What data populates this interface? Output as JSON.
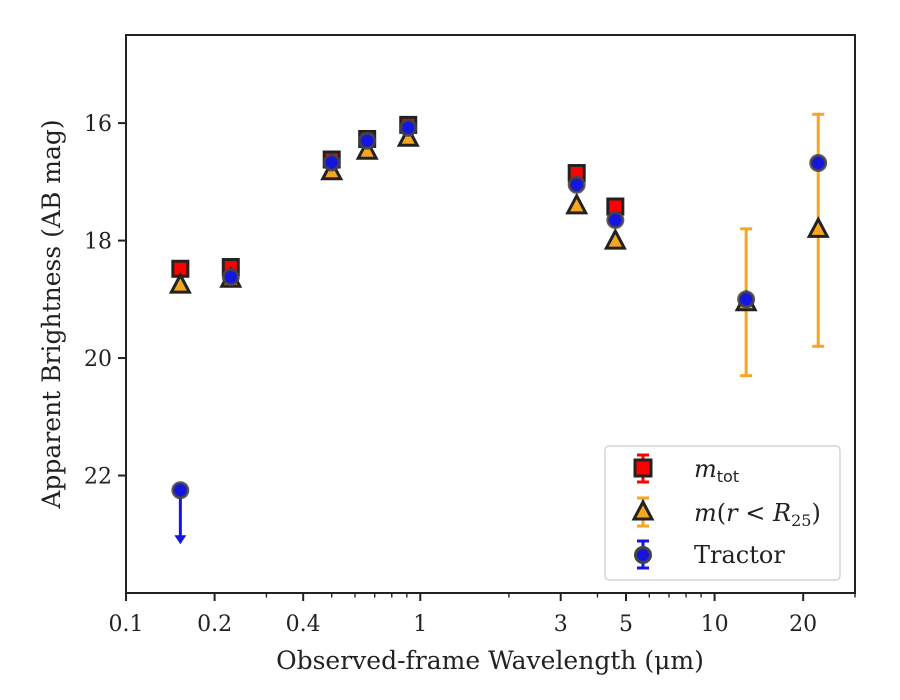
{
  "chart_data": {
    "type": "scatter",
    "xlabel": "Observed-frame Wavelength (μm)",
    "ylabel": "Apparent Brightness (AB mag)",
    "x_scale": "log",
    "y_inverted": true,
    "xlim": [
      0.1,
      30
    ],
    "ylim": [
      24.0,
      14.5
    ],
    "x_ticks": [
      {
        "value": 0.1,
        "label": "0.1"
      },
      {
        "value": 0.2,
        "label": "0.2"
      },
      {
        "value": 0.4,
        "label": "0.4"
      },
      {
        "value": 1,
        "label": "1"
      },
      {
        "value": 3,
        "label": "3"
      },
      {
        "value": 5,
        "label": "5"
      },
      {
        "value": 10,
        "label": "10"
      },
      {
        "value": 20,
        "label": "20"
      }
    ],
    "y_ticks": [
      {
        "value": 16,
        "label": "16"
      },
      {
        "value": 18,
        "label": "18"
      },
      {
        "value": 20,
        "label": "20"
      },
      {
        "value": 22,
        "label": "22"
      }
    ],
    "legend_position": "lower-right",
    "series": [
      {
        "legend_label": "m_tot",
        "marker": "square",
        "color": "#ff0000",
        "edge_color": "#222222",
        "points": [
          {
            "x": 0.153,
            "y": 18.48
          },
          {
            "x": 0.227,
            "y": 18.45
          },
          {
            "x": 0.5,
            "y": 16.62
          },
          {
            "x": 0.66,
            "y": 16.27
          },
          {
            "x": 0.91,
            "y": 16.03
          },
          {
            "x": 3.4,
            "y": 16.85
          },
          {
            "x": 4.6,
            "y": 17.42
          }
        ]
      },
      {
        "legend_label": "m(r < R25)",
        "marker": "triangle",
        "color": "#f5a623",
        "edge_color": "#222222",
        "points": [
          {
            "x": 0.153,
            "y": 18.75
          },
          {
            "x": 0.227,
            "y": 18.65
          },
          {
            "x": 0.5,
            "y": 16.82
          },
          {
            "x": 0.66,
            "y": 16.47
          },
          {
            "x": 0.91,
            "y": 16.25
          },
          {
            "x": 3.4,
            "y": 17.4
          },
          {
            "x": 4.6,
            "y": 18.0
          },
          {
            "x": 12.8,
            "y": 19.05,
            "err_low": 1.25,
            "err_high": 1.25
          },
          {
            "x": 22.5,
            "y": 17.8,
            "err_low": 2.0,
            "err_high": 1.95
          }
        ]
      },
      {
        "legend_label": "Tractor",
        "marker": "circle",
        "color": "#1515e0",
        "edge_color": "#444444",
        "points": [
          {
            "x": 0.153,
            "y": 22.25,
            "upper_limit": true
          },
          {
            "x": 0.227,
            "y": 18.62
          },
          {
            "x": 0.5,
            "y": 16.67
          },
          {
            "x": 0.66,
            "y": 16.3
          },
          {
            "x": 0.91,
            "y": 16.08
          },
          {
            "x": 3.4,
            "y": 17.05
          },
          {
            "x": 4.6,
            "y": 17.65
          },
          {
            "x": 12.8,
            "y": 19.0
          },
          {
            "x": 22.5,
            "y": 16.68
          }
        ]
      }
    ]
  }
}
